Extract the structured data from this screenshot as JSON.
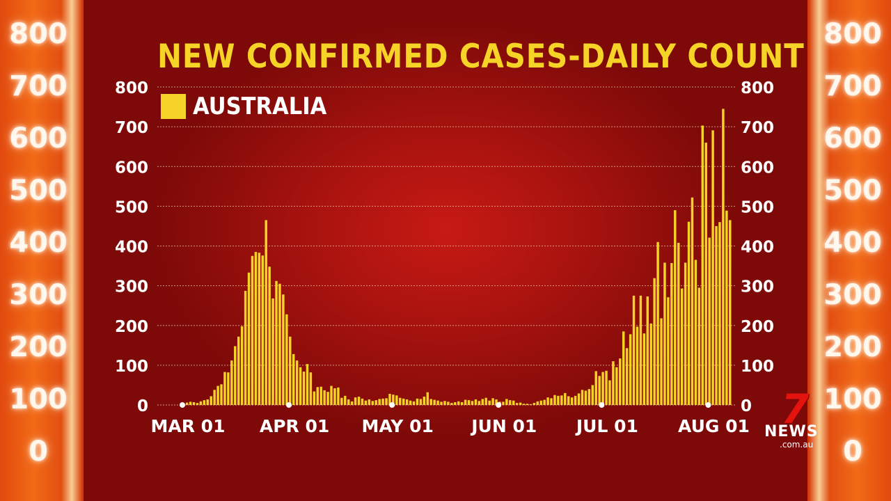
{
  "header": {
    "title": "NEW CONFIRMED CASES-DAILY COUNT",
    "legend_label": "AUSTRALIA"
  },
  "side_numbers": [
    "800",
    "700",
    "600",
    "500",
    "400",
    "300",
    "200",
    "100",
    "0"
  ],
  "logo": {
    "number": "7",
    "brand": "NEWS",
    "domain": ".com.au"
  },
  "colors": {
    "bar": "#f5d327",
    "title": "#f5d327",
    "grid": "#e8c9a8",
    "text": "#ffffff"
  },
  "chart_data": {
    "type": "bar",
    "title": "NEW CONFIRMED CASES-DAILY COUNT",
    "series_name": "AUSTRALIA",
    "x_start": "2020-03-01",
    "x_ticks": [
      "MAR 01",
      "APR 01",
      "MAY 01",
      "JUN 01",
      "JUL 01",
      "AUG 01"
    ],
    "y_ticks": [
      0,
      100,
      200,
      300,
      400,
      500,
      600,
      700,
      800
    ],
    "ylim": [
      0,
      800
    ],
    "grid": true,
    "values": [
      3,
      6,
      8,
      7,
      5,
      9,
      12,
      14,
      22,
      38,
      48,
      52,
      83,
      82,
      112,
      148,
      172,
      198,
      287,
      333,
      375,
      385,
      383,
      376,
      465,
      348,
      268,
      312,
      305,
      278,
      228,
      172,
      128,
      112,
      95,
      84,
      103,
      82,
      34,
      45,
      46,
      37,
      33,
      48,
      42,
      44,
      18,
      23,
      14,
      9,
      19,
      21,
      16,
      11,
      14,
      10,
      12,
      15,
      16,
      17,
      28,
      26,
      24,
      18,
      16,
      14,
      11,
      9,
      16,
      15,
      21,
      32,
      15,
      13,
      11,
      8,
      10,
      8,
      5,
      7,
      9,
      7,
      13,
      12,
      10,
      14,
      10,
      15,
      18,
      11,
      17,
      14,
      8,
      8,
      15,
      12,
      11,
      5,
      6,
      3,
      3,
      2,
      5,
      9,
      11,
      13,
      19,
      17,
      25,
      23,
      24,
      30,
      22,
      19,
      23,
      29,
      38,
      36,
      40,
      50,
      85,
      73,
      83,
      86,
      62,
      110,
      95,
      117,
      185,
      143,
      178,
      275,
      197,
      275,
      180,
      273,
      205,
      319,
      410,
      218,
      358,
      271,
      357,
      490,
      408,
      293,
      358,
      461,
      522,
      365,
      295,
      703,
      660,
      421,
      691,
      450,
      460,
      745,
      489,
      465
    ]
  }
}
